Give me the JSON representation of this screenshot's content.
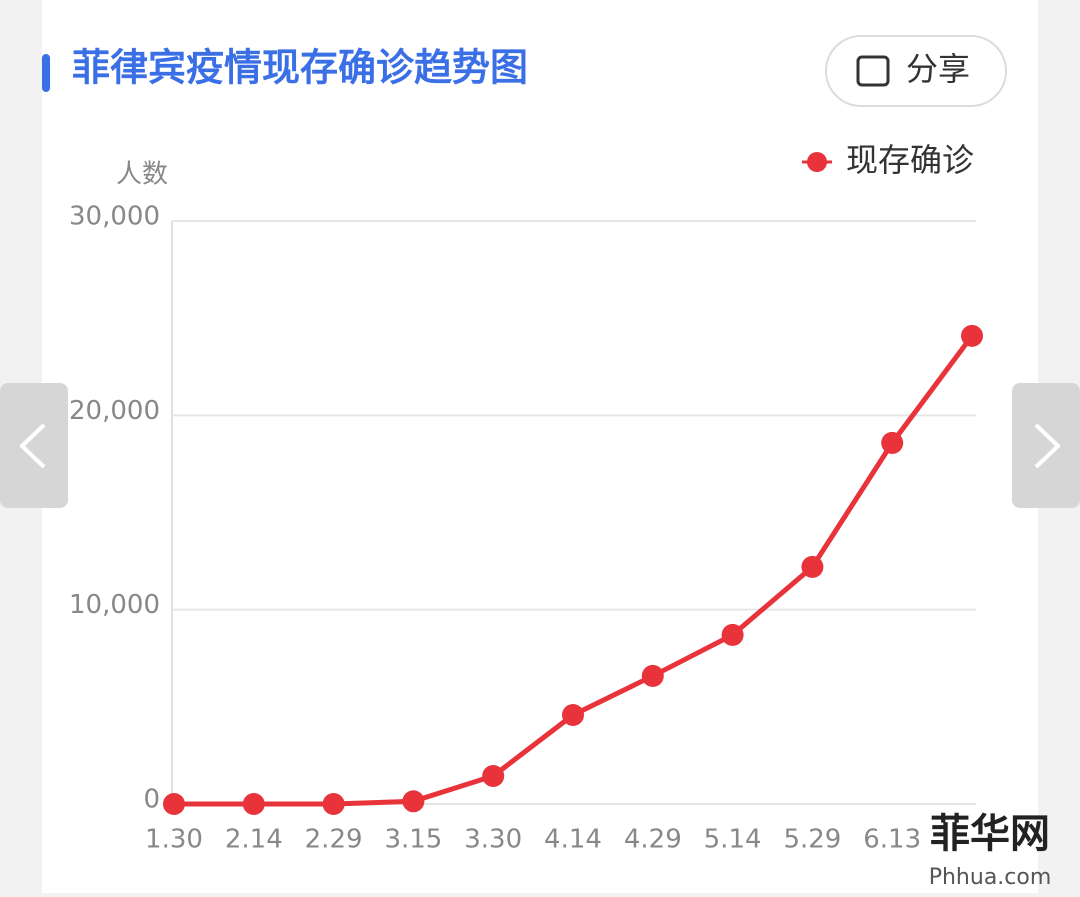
{
  "header": {
    "title": "菲律宾疫情现存确诊趋势图",
    "share": "分享"
  },
  "chart_data": {
    "type": "line",
    "y_label": "人数",
    "categories": [
      "1.30",
      "2.14",
      "2.29",
      "3.15",
      "3.30",
      "4.14",
      "4.29",
      "5.14",
      "5.29",
      "6.13",
      null
    ],
    "series": [
      {
        "name": "现存确诊",
        "color": "#e8333a",
        "values": [
          0,
          0,
          0,
          140,
          1440,
          4580,
          6590,
          8700,
          12200,
          18580,
          24090
        ]
      }
    ],
    "ylim": [
      0,
      30000
    ],
    "yticks": [
      0,
      {
        "value": 10000,
        "label": "10,000"
      },
      {
        "value": 20000,
        "label": "20,000"
      },
      {
        "value": 30000,
        "label": "30,000"
      }
    ],
    "grid": true,
    "legend": "top-right"
  },
  "watermark": {
    "name": "菲华网",
    "url": "Phhua.com"
  }
}
